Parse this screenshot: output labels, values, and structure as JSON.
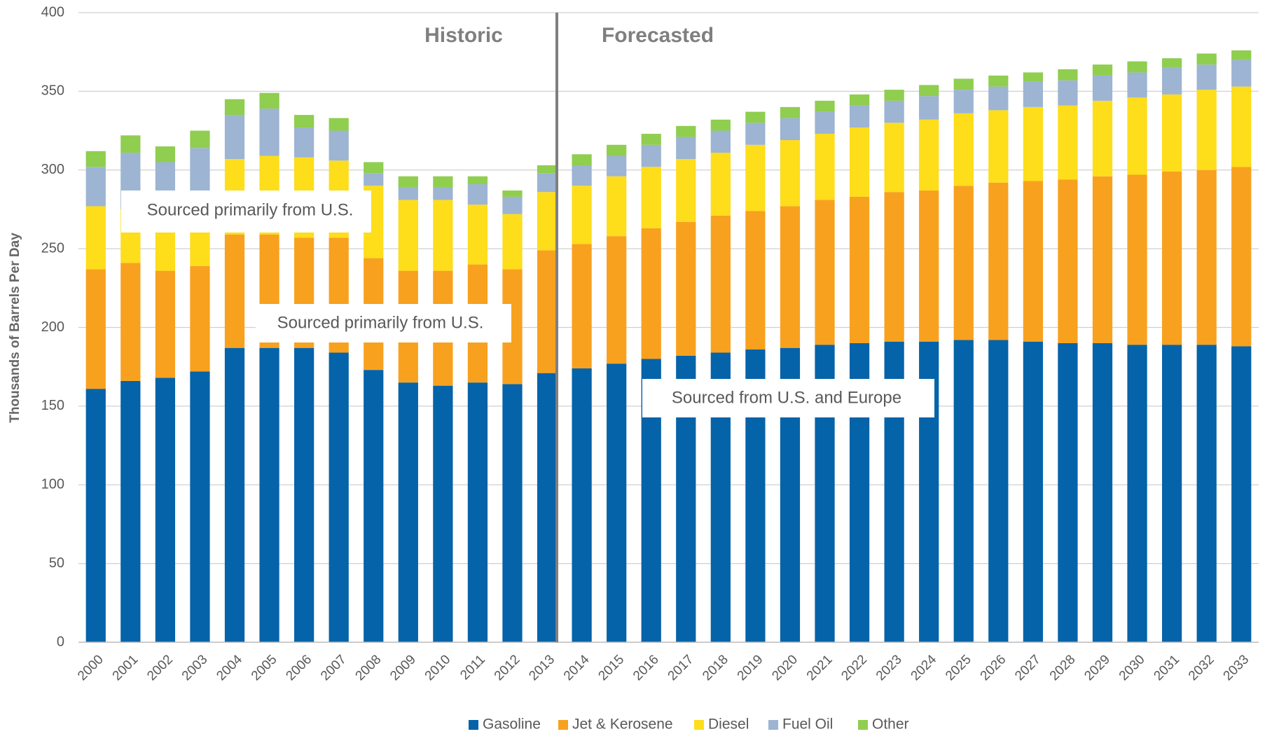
{
  "chart_data": {
    "type": "stacked_bar",
    "y_axis_label": "Thousands of Barrels Per Day",
    "annotations": [
      "Historic",
      "Forecasted",
      "Sourced primarily from U.S.",
      "Sourced primarily from U.S.",
      "Sourced from U.S. and Europe"
    ],
    "categories": [
      "2000",
      "2001",
      "2002",
      "2003",
      "2004",
      "2005",
      "2006",
      "2007",
      "2008",
      "2009",
      "2010",
      "2011",
      "2012",
      "2013",
      "2014",
      "2015",
      "2016",
      "2017",
      "2018",
      "2019",
      "2020",
      "2021",
      "2022",
      "2023",
      "2024",
      "2025",
      "2026",
      "2027",
      "2028",
      "2029",
      "2030",
      "2031",
      "2032",
      "2033"
    ],
    "series": [
      {
        "name": "Gasoline",
        "color": "#0563a9",
        "values": [
          161,
          166,
          168,
          172,
          187,
          187,
          187,
          184,
          173,
          165,
          163,
          165,
          164,
          171,
          174,
          177,
          180,
          182,
          184,
          186,
          187,
          189,
          190,
          191,
          191,
          192,
          192,
          191,
          190,
          190,
          189,
          189,
          189,
          188
        ]
      },
      {
        "name": "Jet & Kerosene",
        "color": "#f8a11f",
        "values": [
          76,
          75,
          68,
          67,
          72,
          72,
          70,
          73,
          71,
          71,
          73,
          75,
          73,
          78,
          79,
          81,
          83,
          85,
          87,
          88,
          90,
          92,
          93,
          95,
          96,
          98,
          100,
          102,
          104,
          106,
          108,
          110,
          111,
          114
        ]
      },
      {
        "name": "Diesel",
        "color": "#fedd1b",
        "values": [
          40,
          34,
          34,
          36,
          48,
          50,
          51,
          49,
          46,
          45,
          45,
          38,
          35,
          37,
          37,
          38,
          39,
          40,
          40,
          42,
          42,
          42,
          44,
          44,
          45,
          46,
          46,
          47,
          47,
          48,
          49,
          49,
          51,
          51
        ]
      },
      {
        "name": "Fuel Oil",
        "color": "#9db4d3",
        "values": [
          25,
          36,
          35,
          39,
          28,
          30,
          19,
          19,
          8,
          8,
          8,
          13,
          11,
          12,
          13,
          13,
          14,
          14,
          14,
          14,
          14,
          14,
          14,
          14,
          15,
          15,
          15,
          16,
          16,
          16,
          16,
          17,
          16,
          17
        ]
      },
      {
        "name": "Other",
        "color": "#8fce4f",
        "values": [
          10,
          11,
          10,
          11,
          10,
          10,
          8,
          8,
          7,
          7,
          7,
          5,
          4,
          5,
          7,
          7,
          7,
          7,
          7,
          7,
          7,
          7,
          7,
          7,
          7,
          7,
          7,
          6,
          7,
          7,
          7,
          6,
          7,
          6
        ]
      }
    ],
    "ylim": [
      0,
      400
    ],
    "yticks": [
      0,
      50,
      100,
      150,
      200,
      250,
      300,
      350,
      400
    ],
    "grid": true,
    "legend": "bottom"
  }
}
